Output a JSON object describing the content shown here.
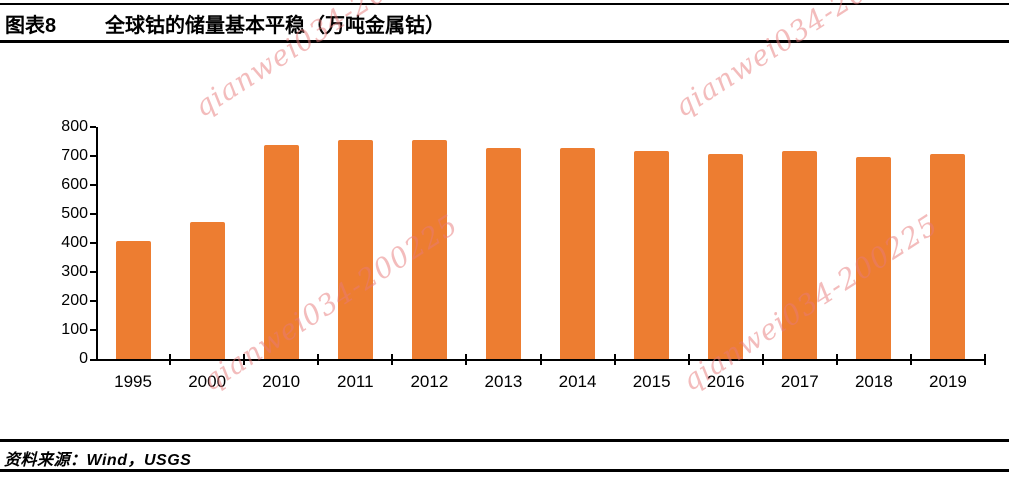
{
  "header": {
    "figure_label": "图表8",
    "title": "全球钴的储量基本平稳（万吨金属钴）"
  },
  "footer": {
    "source_label": "资料来源：",
    "source_text": "Wind，USGS"
  },
  "watermark": {
    "text": "qianwei034-200225",
    "color": "#e87a7a"
  },
  "chart_data": {
    "type": "bar",
    "title": "全球钴的储量基本平稳（万吨金属钴）",
    "xlabel": "",
    "ylabel": "",
    "unit": "万吨金属钴",
    "categories": [
      "1995",
      "2000",
      "2010",
      "2011",
      "2012",
      "2013",
      "2014",
      "2015",
      "2016",
      "2017",
      "2018",
      "2019"
    ],
    "values": [
      405,
      470,
      735,
      755,
      755,
      725,
      725,
      715,
      705,
      715,
      695,
      705
    ],
    "ylim": [
      0,
      800
    ],
    "ytick_interval": 100,
    "ytick_labels": [
      "0",
      "100",
      "200",
      "300",
      "400",
      "500",
      "600",
      "700",
      "800"
    ],
    "bar_color": "#ED7D31",
    "axis_color": "#000000",
    "grid": false,
    "legend": false
  }
}
